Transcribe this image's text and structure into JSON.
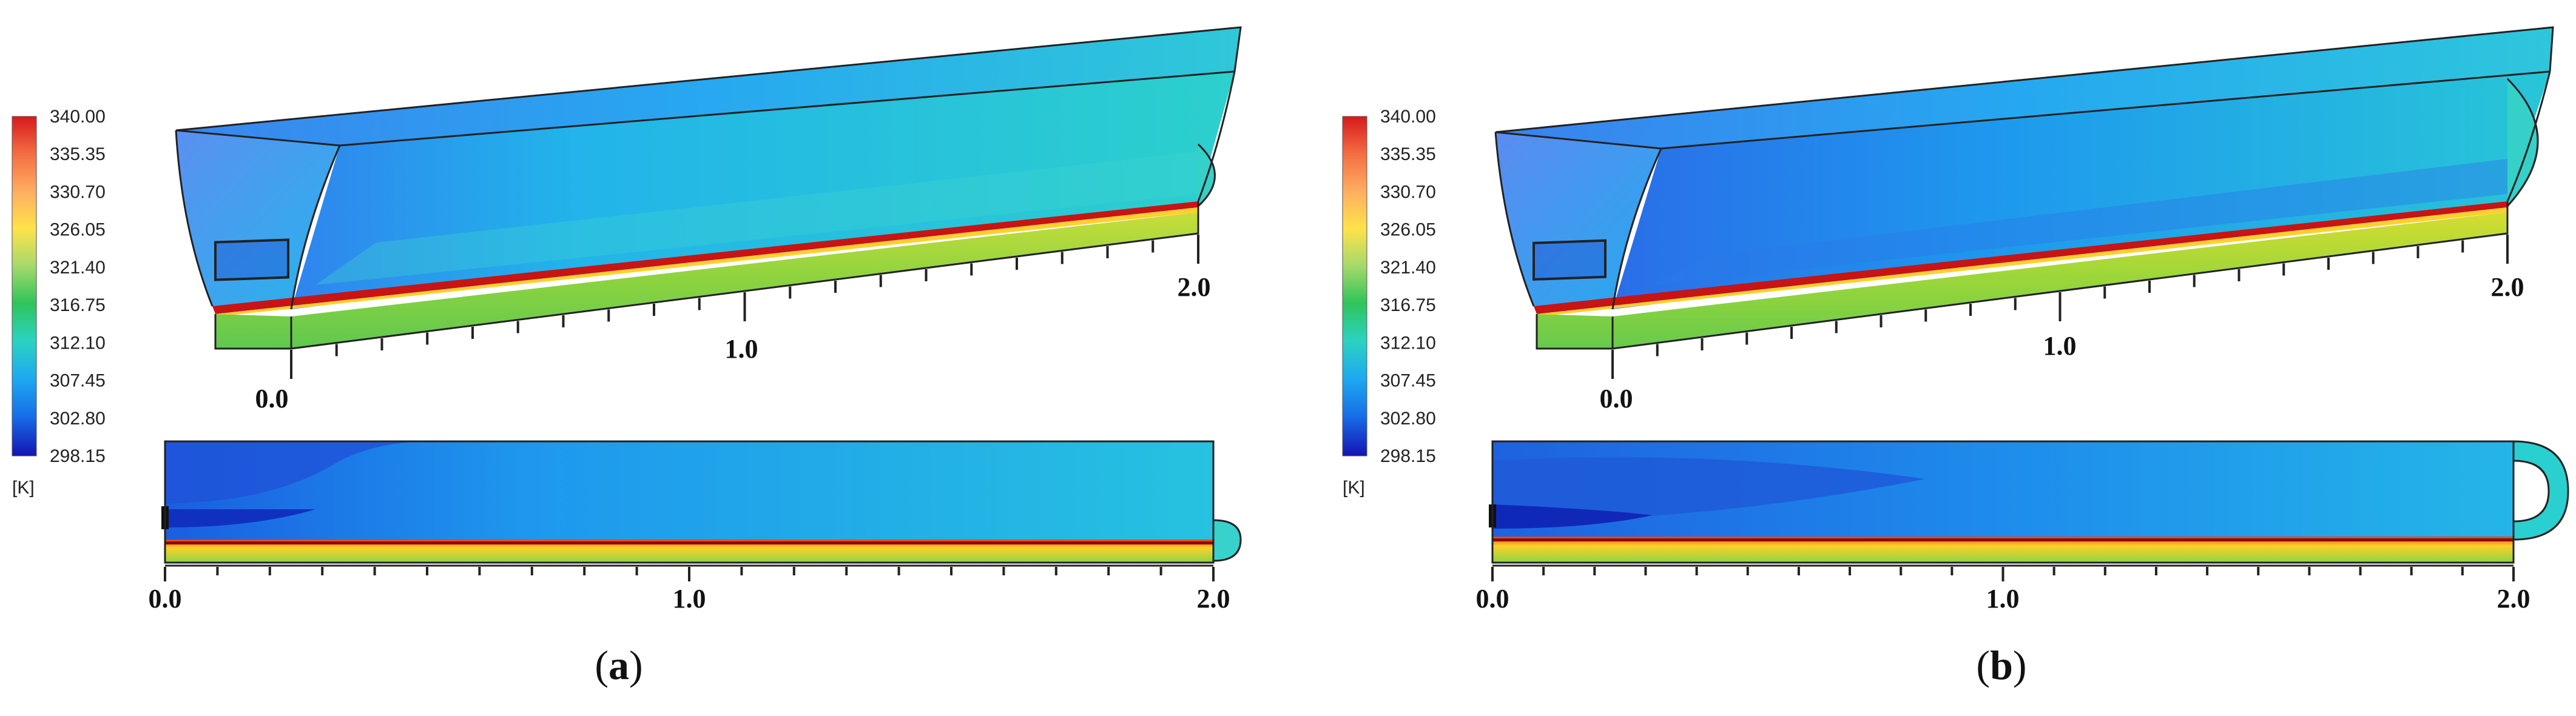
{
  "colorbar": {
    "ticks": [
      "340.00",
      "335.35",
      "330.70",
      "326.05",
      "321.40",
      "316.75",
      "312.10",
      "307.45",
      "302.80",
      "298.15"
    ],
    "unit": "[K]",
    "colors": [
      "#d7191c",
      "#f46d43",
      "#fdae61",
      "#ffe24a",
      "#a6d96a",
      "#2fc45a",
      "#2bd3c0",
      "#1eaaf0",
      "#1770e8",
      "#1414b4"
    ]
  },
  "panels": [
    {
      "id": "a",
      "caption_open": "(",
      "caption_letter": "a",
      "caption_close": ")",
      "iso_labels": [
        "0.0",
        "1.0",
        "2.0"
      ],
      "section_labels": [
        "0.0",
        "1.0",
        "2.0"
      ]
    },
    {
      "id": "b",
      "caption_open": "(",
      "caption_letter": "b",
      "caption_close": ")",
      "iso_labels": [
        "0.0",
        "1.0",
        "2.0"
      ],
      "section_labels": [
        "0.0",
        "1.0",
        "2.0"
      ]
    }
  ]
}
